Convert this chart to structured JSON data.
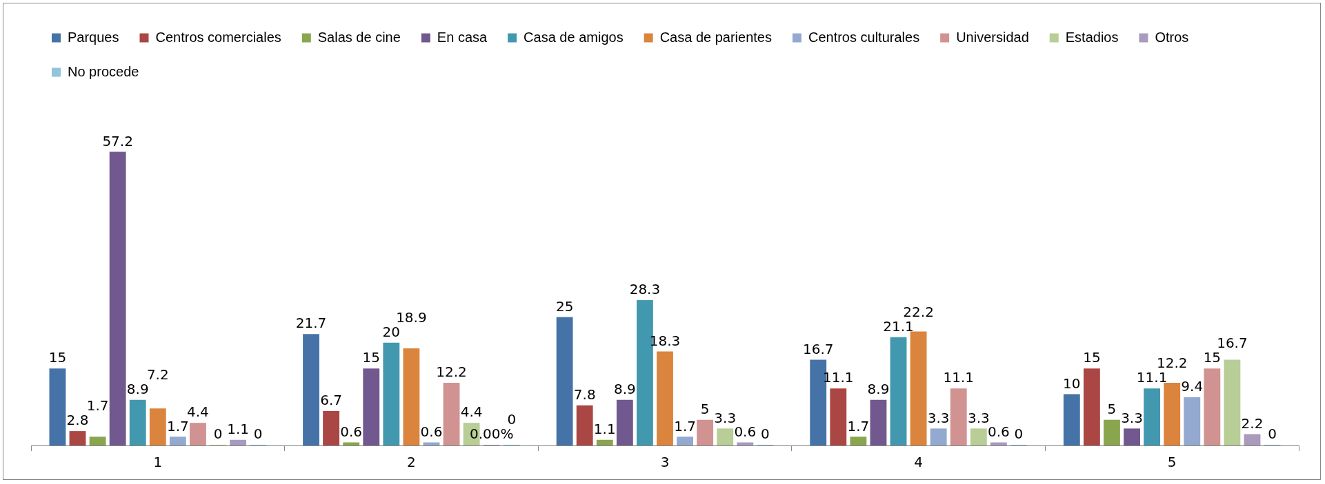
{
  "chart_data": {
    "type": "bar",
    "categories": [
      "1",
      "2",
      "3",
      "4",
      "5"
    ],
    "legend": "top",
    "grid": false,
    "series": [
      {
        "name": "Parques",
        "color": "#4572a7",
        "values": [
          15,
          21.7,
          25,
          16.7,
          10
        ],
        "value_labels": [
          "15",
          "21.7",
          "25",
          "16.7",
          "10"
        ]
      },
      {
        "name": "Centros comerciales",
        "color": "#aa4643",
        "values": [
          2.8,
          6.7,
          7.8,
          11.1,
          15
        ],
        "value_labels": [
          "2.8",
          "6.7",
          "7.8",
          "11.1",
          "15"
        ]
      },
      {
        "name": "Salas de cine",
        "color": "#89a54e",
        "values": [
          1.7,
          0.6,
          1.1,
          1.7,
          5
        ],
        "value_labels": [
          "1.7",
          "0.6",
          "1.1",
          "1.7",
          "5"
        ]
      },
      {
        "name": "En casa",
        "color": "#71588f",
        "values": [
          57.2,
          15,
          8.9,
          8.9,
          3.3
        ],
        "value_labels": [
          "57.2",
          "15",
          "8.9",
          "8.9",
          "3.3"
        ]
      },
      {
        "name": "Casa de amigos",
        "color": "#4198af",
        "values": [
          8.9,
          20,
          28.3,
          21.1,
          11.1
        ],
        "value_labels": [
          "8.9",
          "20",
          "28.3",
          "21.1",
          "11.1"
        ]
      },
      {
        "name": "Casa de parientes",
        "color": "#db843d",
        "values": [
          7.2,
          18.9,
          18.3,
          22.2,
          12.2
        ],
        "value_labels": [
          "7.2",
          "18.9",
          "18.3",
          "22.2",
          "12.2"
        ]
      },
      {
        "name": "Centros culturales",
        "color": "#93a9cf",
        "values": [
          1.7,
          0.6,
          1.7,
          3.3,
          9.4
        ],
        "value_labels": [
          "1.7",
          "0.6",
          "1.7",
          "3.3",
          "9.4"
        ]
      },
      {
        "name": "Universidad",
        "color": "#d19392",
        "values": [
          4.4,
          12.2,
          5,
          11.1,
          15
        ],
        "value_labels": [
          "4.4",
          "12.2",
          "5",
          "11.1",
          "15"
        ]
      },
      {
        "name": "Estadios",
        "color": "#b9cd96",
        "values": [
          0,
          4.4,
          3.3,
          3.3,
          16.7
        ],
        "value_labels": [
          "0",
          "4.4",
          "3.3",
          "3.3",
          "16.7"
        ]
      },
      {
        "name": "Otros",
        "color": "#a99bbd",
        "values": [
          1.1,
          0,
          0.6,
          0.6,
          2.2
        ],
        "value_labels": [
          "1.1",
          "0.00%",
          "0.6",
          "0.6",
          "2.2"
        ]
      },
      {
        "name": "No procede",
        "color": "#92c5d9",
        "values": [
          0,
          0,
          0,
          0,
          0
        ],
        "value_labels": [
          "0",
          "0",
          "0",
          "0",
          "0"
        ]
      }
    ]
  }
}
